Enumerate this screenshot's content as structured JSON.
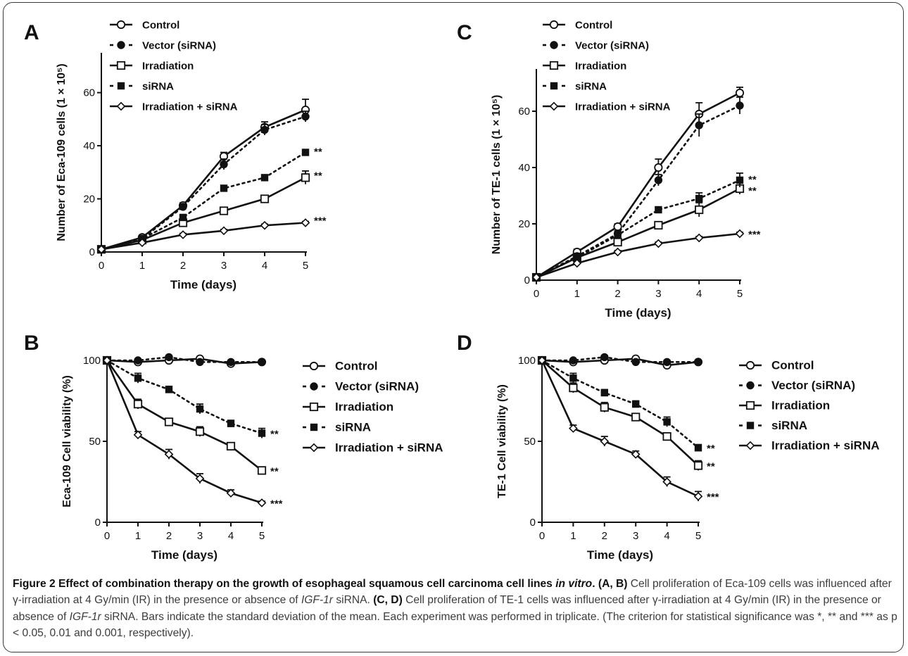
{
  "figure": {
    "caption": {
      "label": "Figure 2",
      "title_pre": "Effect of combination therapy on the growth of esophageal squamous cell carcinoma cell lines ",
      "title_italic": "in vitro",
      "title_post": ".",
      "p1_label": "(A, B)",
      "p1_text_a": " Cell proliferation of Eca-109 cells was influenced after γ-irradiation at 4 Gy/min (IR) in the presence or absence of ",
      "gene": "IGF-1r",
      "p1_text_b": " siRNA. ",
      "p2_label": "(C, D)",
      "p2_text_a": " Cell proliferation of TE-1 cells was influenced after γ-irradiation at 4 Gy/min (IR) in the presence or absence of ",
      "p2_text_b": " siRNA. Bars indicate the standard deviation of the mean. Each experiment was performed in triplicate. (The criterion for statistical significance was *, ** and *** as p < 0.05, 0.01 and 0.001, respectively)."
    }
  },
  "chart_data": [
    {
      "panel": "A",
      "type": "line",
      "xlabel": "Time (days)",
      "ylabel": "Number of Eca-109 cells (1 × 10⁵)",
      "x": [
        0,
        1,
        2,
        3,
        4,
        5
      ],
      "xlim": [
        0,
        5
      ],
      "ylim": [
        0,
        75
      ],
      "yticks": [
        0,
        20,
        40,
        60
      ],
      "legend_position": "top",
      "series": [
        {
          "name": "Control",
          "values": [
            1,
            5.5,
            17.5,
            36,
            47,
            53.5
          ],
          "err": [
            0.5,
            0.8,
            1,
            1.5,
            2,
            4
          ],
          "marker": "open-circle",
          "style": "solid"
        },
        {
          "name": "Vector (siRNA)",
          "values": [
            1,
            5,
            17,
            33,
            46,
            51
          ],
          "err": [
            0.5,
            0.8,
            1,
            2,
            2,
            2
          ],
          "marker": "filled-circle",
          "style": "dotted"
        },
        {
          "name": "Irradiation",
          "values": [
            1,
            4.5,
            11,
            15.5,
            20,
            28
          ],
          "err": [
            0.5,
            0.5,
            1,
            1,
            1,
            2.5
          ],
          "marker": "open-square",
          "style": "solid"
        },
        {
          "name": "siRNA",
          "values": [
            1,
            5,
            13,
            24,
            28,
            37.5
          ],
          "err": [
            0.5,
            0.5,
            1,
            1,
            1,
            1
          ],
          "marker": "filled-square",
          "style": "dotted"
        },
        {
          "name": "Irradiation + siRNA",
          "values": [
            1,
            3.5,
            6.5,
            8,
            10,
            11
          ],
          "err": [
            0.3,
            0.3,
            0.5,
            0.5,
            0.5,
            0.5
          ],
          "marker": "open-diamond",
          "style": "solid"
        }
      ],
      "annotations": [
        {
          "text": "**",
          "x": 5,
          "y": 38
        },
        {
          "text": "**",
          "x": 5,
          "y": 29
        },
        {
          "text": "***",
          "x": 5,
          "y": 12
        }
      ]
    },
    {
      "panel": "C",
      "type": "line",
      "xlabel": "Time (days)",
      "ylabel": "Number of TE-1 cells (1 × 10⁵)",
      "x": [
        0,
        1,
        2,
        3,
        4,
        5
      ],
      "xlim": [
        0,
        5
      ],
      "ylim": [
        0,
        75
      ],
      "yticks": [
        0,
        20,
        40,
        60
      ],
      "legend_position": "top",
      "series": [
        {
          "name": "Control",
          "values": [
            1,
            10,
            19,
            40,
            59,
            66.5
          ],
          "err": [
            0.5,
            1,
            1,
            3,
            4,
            2
          ],
          "marker": "open-circle",
          "style": "solid"
        },
        {
          "name": "Vector (siRNA)",
          "values": [
            1,
            8.5,
            16.5,
            35.5,
            55,
            62
          ],
          "err": [
            0.5,
            1,
            1,
            2,
            4,
            3
          ],
          "marker": "filled-circle",
          "style": "dotted"
        },
        {
          "name": "Irradiation",
          "values": [
            1,
            8,
            13.5,
            19.5,
            25,
            32.5
          ],
          "err": [
            0.5,
            1,
            1,
            1,
            2.5,
            2
          ],
          "marker": "open-square",
          "style": "solid"
        },
        {
          "name": "siRNA",
          "values": [
            1,
            8,
            16,
            25,
            29,
            35.5
          ],
          "err": [
            0.5,
            1,
            1,
            1,
            2,
            2.5
          ],
          "marker": "filled-square",
          "style": "dotted"
        },
        {
          "name": "Irradiation + siRNA",
          "values": [
            1,
            6,
            10,
            13,
            15,
            16.5
          ],
          "err": [
            0.3,
            0.5,
            0.5,
            0.5,
            0.5,
            0.5
          ],
          "marker": "open-diamond",
          "style": "solid"
        }
      ],
      "annotations": [
        {
          "text": "**",
          "x": 5,
          "y": 36
        },
        {
          "text": "**",
          "x": 5,
          "y": 32
        },
        {
          "text": "***",
          "x": 5,
          "y": 16.5
        }
      ]
    },
    {
      "panel": "B",
      "type": "line",
      "xlabel": "Time (days)",
      "ylabel": "Eca-109 Cell viability (%)",
      "x": [
        0,
        1,
        2,
        3,
        4,
        5
      ],
      "xlim": [
        0,
        5
      ],
      "ylim": [
        0,
        100
      ],
      "yticks": [
        0,
        50,
        100
      ],
      "legend_position": "right",
      "series": [
        {
          "name": "Control",
          "values": [
            100,
            99,
            100,
            101,
            98,
            99
          ],
          "err": [
            0,
            0.5,
            0.5,
            1,
            1,
            0.5
          ],
          "marker": "open-circle",
          "style": "solid"
        },
        {
          "name": "Vector (siRNA)",
          "values": [
            100,
            100,
            102,
            99,
            99,
            99
          ],
          "err": [
            0,
            0.5,
            1,
            1,
            1,
            0.5
          ],
          "marker": "filled-circle",
          "style": "dotted"
        },
        {
          "name": "Irradiation",
          "values": [
            100,
            73,
            62,
            56,
            47,
            32
          ],
          "err": [
            0,
            3,
            2,
            3,
            2,
            2
          ],
          "marker": "open-square",
          "style": "solid"
        },
        {
          "name": "siRNA",
          "values": [
            100,
            89,
            82,
            70,
            61,
            55
          ],
          "err": [
            0,
            3,
            2,
            3,
            2,
            3
          ],
          "marker": "filled-square",
          "style": "dotted"
        },
        {
          "name": "Irradiation + siRNA",
          "values": [
            100,
            54,
            42,
            27,
            18,
            12
          ],
          "err": [
            0,
            2,
            3,
            3,
            2,
            1
          ],
          "marker": "open-diamond",
          "style": "solid"
        }
      ],
      "annotations": [
        {
          "text": "**",
          "x": 5,
          "y": 55
        },
        {
          "text": "**",
          "x": 5,
          "y": 32
        },
        {
          "text": "***",
          "x": 5,
          "y": 12
        }
      ]
    },
    {
      "panel": "D",
      "type": "line",
      "xlabel": "Time (days)",
      "ylabel": "TE-1 Cell viability (%)",
      "x": [
        0,
        1,
        2,
        3,
        4,
        5
      ],
      "xlim": [
        0,
        5
      ],
      "ylim": [
        0,
        100
      ],
      "yticks": [
        0,
        50,
        100
      ],
      "legend_position": "right",
      "series": [
        {
          "name": "Control",
          "values": [
            100,
            99,
            100,
            101,
            97,
            99
          ],
          "err": [
            0,
            0.5,
            0.5,
            1,
            2,
            0.5
          ],
          "marker": "open-circle",
          "style": "solid"
        },
        {
          "name": "Vector (siRNA)",
          "values": [
            100,
            100,
            102,
            99,
            99,
            99
          ],
          "err": [
            0,
            0.5,
            1,
            1,
            1,
            0.5
          ],
          "marker": "filled-circle",
          "style": "dotted"
        },
        {
          "name": "Irradiation",
          "values": [
            100,
            83,
            71,
            65,
            53,
            35
          ],
          "err": [
            0,
            3,
            3,
            2,
            2,
            3
          ],
          "marker": "open-square",
          "style": "solid"
        },
        {
          "name": "siRNA",
          "values": [
            100,
            89,
            80,
            73,
            62,
            46
          ],
          "err": [
            0,
            3,
            2,
            2,
            3,
            2
          ],
          "marker": "filled-square",
          "style": "dotted"
        },
        {
          "name": "Irradiation + siRNA",
          "values": [
            100,
            58,
            50,
            42,
            25,
            16
          ],
          "err": [
            0,
            2,
            3,
            2,
            3,
            3
          ],
          "marker": "open-diamond",
          "style": "solid"
        }
      ],
      "annotations": [
        {
          "text": "**",
          "x": 5,
          "y": 46
        },
        {
          "text": "**",
          "x": 5,
          "y": 35
        },
        {
          "text": "***",
          "x": 5,
          "y": 16
        }
      ]
    }
  ]
}
